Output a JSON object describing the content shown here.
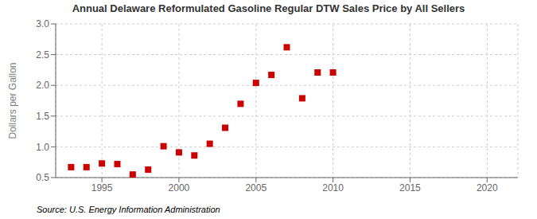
{
  "chart_data": {
    "type": "scatter",
    "title": "Annual Delaware Reformulated Gasoline Regular DTW Sales Price by All Sellers",
    "y_label": "Dollars per Gallon",
    "annotation": "Source: U.S. Energy Information Administration",
    "x": [
      1993,
      1994,
      1995,
      1996,
      1997,
      1998,
      1999,
      2000,
      2001,
      2002,
      2003,
      2004,
      2005,
      2006,
      2007,
      2008,
      2009,
      2010
    ],
    "values": [
      0.67,
      0.67,
      0.73,
      0.72,
      0.55,
      0.63,
      1.01,
      0.91,
      0.86,
      1.05,
      1.31,
      1.7,
      2.04,
      2.17,
      2.62,
      1.79,
      2.21,
      2.21
    ],
    "xlim": [
      1992,
      2022
    ],
    "ylim": [
      0.5,
      3.0
    ],
    "xticks": [
      1995,
      2000,
      2005,
      2010,
      2015,
      2020
    ],
    "yticks": [
      0.5,
      {
        "value": 1.0,
        "label": "1.0"
      },
      1.5,
      {
        "value": 2.0,
        "label": "2.0"
      },
      2.5,
      {
        "value": 3.0,
        "label": "3.0"
      }
    ],
    "color": "#cc0000",
    "marker": "square",
    "grid": true
  }
}
